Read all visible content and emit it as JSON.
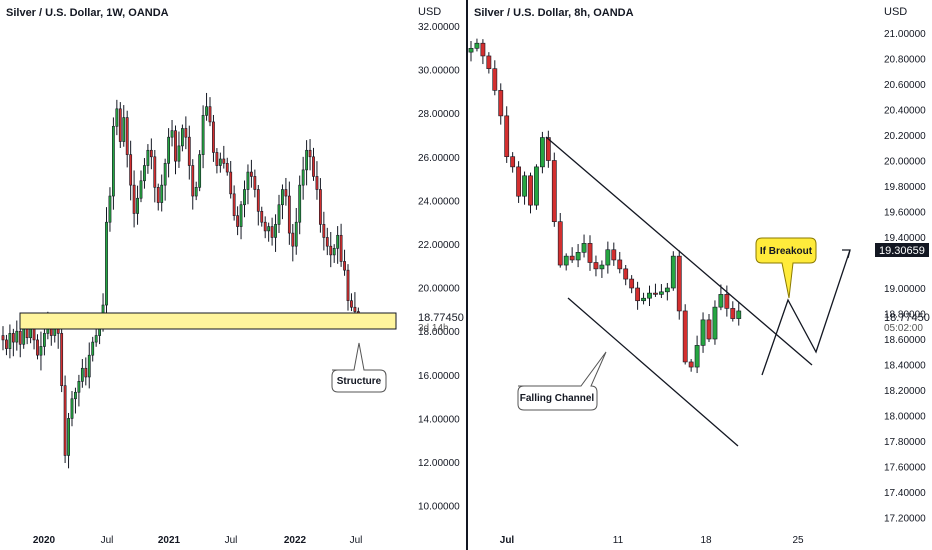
{
  "left_chart": {
    "title": "Silver / U.S. Dollar, 1W, OANDA",
    "currency": "USD",
    "price_label": "18.77450",
    "countdown": "3d 14h",
    "callout": "Structure",
    "x_ticks": [
      "2020",
      "Jul",
      "2021",
      "Jul",
      "2022",
      "Jul"
    ],
    "y_ticks": [
      "32.00000",
      "30.00000",
      "28.00000",
      "26.00000",
      "24.00000",
      "22.00000",
      "20.00000",
      "18.00000",
      "16.00000",
      "14.00000",
      "12.00000",
      "10.00000"
    ],
    "colors": {
      "up": "#26a641",
      "down": "#d32f2f",
      "zone_fill": "#fff59d",
      "zone_stroke": "#131722"
    }
  },
  "right_chart": {
    "title": "Silver / U.S. Dollar, 8h, OANDA",
    "currency": "USD",
    "price_label": "18.77450",
    "countdown": "05:02:00",
    "breakout_price": "19.30659",
    "callout_channel": "Falling Channel",
    "callout_breakout": "If Breakout",
    "x_ticks": [
      "Jul",
      "11",
      "18",
      "25"
    ],
    "y_ticks": [
      "21.00000",
      "20.80000",
      "20.60000",
      "20.40000",
      "20.20000",
      "20.00000",
      "19.80000",
      "19.60000",
      "19.40000",
      "19.20000",
      "19.00000",
      "18.80000",
      "18.60000",
      "18.40000",
      "18.20000",
      "18.00000",
      "17.80000",
      "17.60000",
      "17.40000",
      "17.20000"
    ],
    "colors": {
      "up": "#26a641",
      "down": "#d32f2f",
      "breakout_fill": "#ffeb3b"
    }
  },
  "chart_data": [
    {
      "type": "candlestick",
      "title": "Silver / U.S. Dollar, 1W, OANDA",
      "ylabel": "USD",
      "ylim": [
        9.5,
        33
      ],
      "path": [
        17.8,
        17.6,
        17.2,
        17.9,
        17.5,
        18.0,
        17.4,
        18.2,
        17.7,
        18.1,
        17.6,
        16.9,
        17.3,
        17.9,
        18.2,
        17.8,
        18.3,
        17.9,
        15.5,
        12.3,
        14.0,
        14.9,
        15.2,
        15.7,
        16.3,
        15.9,
        16.9,
        17.5,
        17.8,
        18.5,
        19.2,
        23.0,
        24.2,
        27.4,
        28.2,
        26.7,
        27.8,
        26.1,
        24.7,
        23.4,
        24.1,
        24.9,
        25.6,
        26.3,
        26.0,
        24.6,
        23.9,
        24.7,
        25.7,
        26.9,
        27.2,
        25.8,
        26.5,
        27.3,
        26.9,
        25.6,
        24.2,
        24.6,
        26.1,
        27.9,
        28.3,
        27.6,
        26.2,
        25.6,
        25.9,
        25.7,
        25.3,
        24.3,
        23.3,
        22.8,
        23.8,
        24.5,
        25.3,
        25.1,
        24.5,
        23.5,
        23.0,
        22.6,
        22.8,
        22.3,
        22.9,
        23.8,
        24.5,
        24.2,
        22.5,
        21.9,
        23.0,
        24.7,
        25.4,
        26.3,
        26.0,
        25.1,
        24.5,
        22.9,
        22.3,
        21.9,
        21.5,
        21.8,
        22.4,
        21.2,
        20.8,
        19.4,
        19.1,
        18.9,
        18.5
      ],
      "structure_zone": [
        18.3,
        19.1
      ],
      "price": 18.7745
    },
    {
      "type": "candlestick",
      "title": "Silver / U.S. Dollar, 8h, OANDA",
      "ylabel": "USD",
      "ylim": [
        17.13,
        21.08
      ],
      "path": [
        20.85,
        20.88,
        20.92,
        20.82,
        20.72,
        20.55,
        20.35,
        20.03,
        19.95,
        19.72,
        19.88,
        19.65,
        19.95,
        20.18,
        20.0,
        19.52,
        19.18,
        19.25,
        19.22,
        19.28,
        19.35,
        19.2,
        19.15,
        19.18,
        19.3,
        19.22,
        19.15,
        19.07,
        19.0,
        18.9,
        18.92,
        18.96,
        18.95,
        18.97,
        19.0,
        19.25,
        18.82,
        18.42,
        18.38,
        18.55,
        18.75,
        18.6,
        18.85,
        18.95,
        18.84,
        18.76,
        18.82
      ],
      "price": 18.7745,
      "breakout_price": 19.30659
    }
  ]
}
